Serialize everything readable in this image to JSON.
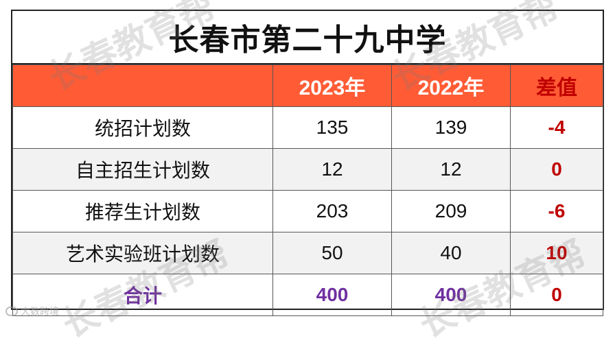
{
  "title": "长春市第二十九中学",
  "headers": [
    "",
    "2023年",
    "2022年",
    "差值"
  ],
  "rows": [
    {
      "label": "统招计划数",
      "y2023": "135",
      "y2022": "139",
      "diff": "-4"
    },
    {
      "label": "自主招生计划数",
      "y2023": "12",
      "y2022": "12",
      "diff": "0"
    },
    {
      "label": "推荐生计划数",
      "y2023": "203",
      "y2022": "209",
      "diff": "-6"
    },
    {
      "label": "艺术实验班计划数",
      "y2023": "50",
      "y2022": "40",
      "diff": "10"
    }
  ],
  "total": {
    "label": "合计",
    "y2023": "400",
    "y2022": "400",
    "diff": "0"
  },
  "watermark": "长春教育帮",
  "brand": "大数跨境",
  "colors": {
    "header_bg": "#ff5c36",
    "diff_red": "#c00000",
    "total_purple": "#7030a0",
    "alt_row": "#f2f2f2"
  }
}
